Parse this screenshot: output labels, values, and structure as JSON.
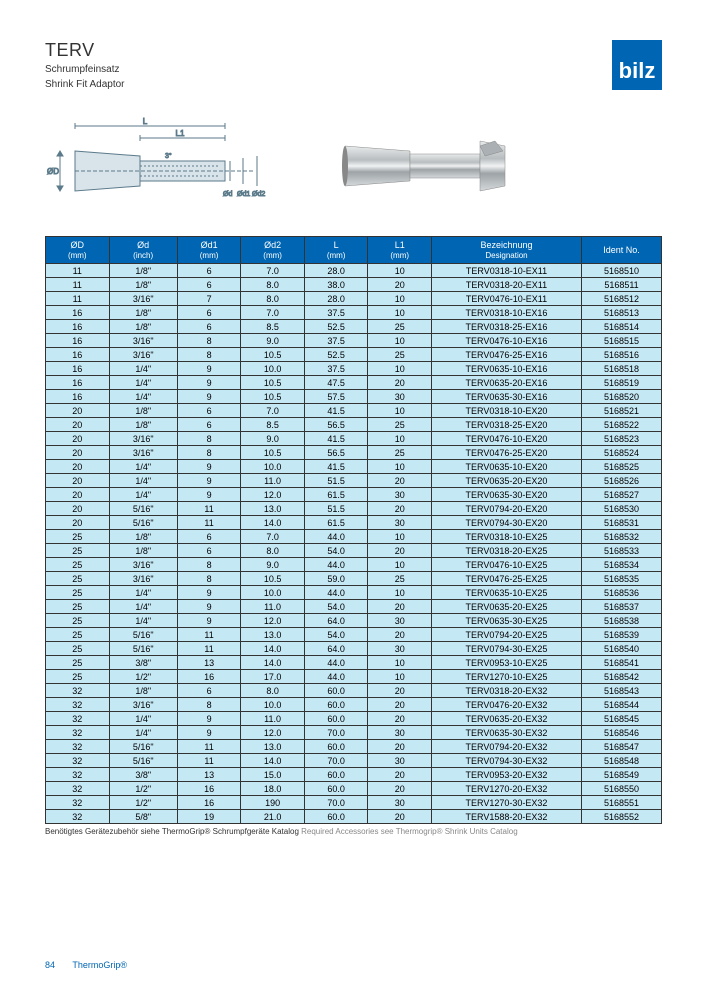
{
  "header": {
    "title": "TERV",
    "subtitle1": "Schrumpfeinsatz",
    "subtitle2": "Shrink Fit Adaptor",
    "logo_text": "bilz",
    "logo_bg": "#0066b3"
  },
  "diagram": {
    "labels": {
      "L": "L",
      "L1": "L1",
      "angle": "3°",
      "OD": "ØD",
      "od": "Ød",
      "od1": "Ød1",
      "od2": "Ød2"
    },
    "stroke": "#5b7a8a",
    "fill": "#d8e4ea"
  },
  "table": {
    "header_bg": "#0066b3",
    "header_fg": "#ffffff",
    "row_bg": "#c5e8f5",
    "border": "#333333",
    "columns": [
      {
        "h1": "ØD",
        "h2": "(mm)"
      },
      {
        "h1": "Ød",
        "h2": "(inch)"
      },
      {
        "h1": "Ød1",
        "h2": "(mm)"
      },
      {
        "h1": "Ød2",
        "h2": "(mm)"
      },
      {
        "h1": "L",
        "h2": "(mm)"
      },
      {
        "h1": "L1",
        "h2": "(mm)"
      },
      {
        "h1": "Bezeichnung",
        "h2": "Designation"
      },
      {
        "h1": "Ident No.",
        "h2": ""
      }
    ],
    "rows": [
      [
        "11",
        "1/8\"",
        "6",
        "7.0",
        "28.0",
        "10",
        "TERV0318-10-EX11",
        "5168510"
      ],
      [
        "11",
        "1/8\"",
        "6",
        "8.0",
        "38.0",
        "20",
        "TERV0318-20-EX11",
        "5168511"
      ],
      [
        "11",
        "3/16\"",
        "7",
        "8.0",
        "28.0",
        "10",
        "TERV0476-10-EX11",
        "5168512"
      ],
      [
        "16",
        "1/8\"",
        "6",
        "7.0",
        "37.5",
        "10",
        "TERV0318-10-EX16",
        "5168513"
      ],
      [
        "16",
        "1/8\"",
        "6",
        "8.5",
        "52.5",
        "25",
        "TERV0318-25-EX16",
        "5168514"
      ],
      [
        "16",
        "3/16\"",
        "8",
        "9.0",
        "37.5",
        "10",
        "TERV0476-10-EX16",
        "5168515"
      ],
      [
        "16",
        "3/16\"",
        "8",
        "10.5",
        "52.5",
        "25",
        "TERV0476-25-EX16",
        "5168516"
      ],
      [
        "16",
        "1/4\"",
        "9",
        "10.0",
        "37.5",
        "10",
        "TERV0635-10-EX16",
        "5168518"
      ],
      [
        "16",
        "1/4\"",
        "9",
        "10.5",
        "47.5",
        "20",
        "TERV0635-20-EX16",
        "5168519"
      ],
      [
        "16",
        "1/4\"",
        "9",
        "10.5",
        "57.5",
        "30",
        "TERV0635-30-EX16",
        "5168520"
      ],
      [
        "20",
        "1/8\"",
        "6",
        "7.0",
        "41.5",
        "10",
        "TERV0318-10-EX20",
        "5168521"
      ],
      [
        "20",
        "1/8\"",
        "6",
        "8.5",
        "56.5",
        "25",
        "TERV0318-25-EX20",
        "5168522"
      ],
      [
        "20",
        "3/16\"",
        "8",
        "9.0",
        "41.5",
        "10",
        "TERV0476-10-EX20",
        "5168523"
      ],
      [
        "20",
        "3/16\"",
        "8",
        "10.5",
        "56.5",
        "25",
        "TERV0476-25-EX20",
        "5168524"
      ],
      [
        "20",
        "1/4\"",
        "9",
        "10.0",
        "41.5",
        "10",
        "TERV0635-10-EX20",
        "5168525"
      ],
      [
        "20",
        "1/4\"",
        "9",
        "11.0",
        "51.5",
        "20",
        "TERV0635-20-EX20",
        "5168526"
      ],
      [
        "20",
        "1/4\"",
        "9",
        "12.0",
        "61.5",
        "30",
        "TERV0635-30-EX20",
        "5168527"
      ],
      [
        "20",
        "5/16\"",
        "11",
        "13.0",
        "51.5",
        "20",
        "TERV0794-20-EX20",
        "5168530"
      ],
      [
        "20",
        "5/16\"",
        "11",
        "14.0",
        "61.5",
        "30",
        "TERV0794-30-EX20",
        "5168531"
      ],
      [
        "25",
        "1/8\"",
        "6",
        "7.0",
        "44.0",
        "10",
        "TERV0318-10-EX25",
        "5168532"
      ],
      [
        "25",
        "1/8\"",
        "6",
        "8.0",
        "54.0",
        "20",
        "TERV0318-20-EX25",
        "5168533"
      ],
      [
        "25",
        "3/16\"",
        "8",
        "9.0",
        "44.0",
        "10",
        "TERV0476-10-EX25",
        "5168534"
      ],
      [
        "25",
        "3/16\"",
        "8",
        "10.5",
        "59.0",
        "25",
        "TERV0476-25-EX25",
        "5168535"
      ],
      [
        "25",
        "1/4\"",
        "9",
        "10.0",
        "44.0",
        "10",
        "TERV0635-10-EX25",
        "5168536"
      ],
      [
        "25",
        "1/4\"",
        "9",
        "11.0",
        "54.0",
        "20",
        "TERV0635-20-EX25",
        "5168537"
      ],
      [
        "25",
        "1/4\"",
        "9",
        "12.0",
        "64.0",
        "30",
        "TERV0635-30-EX25",
        "5168538"
      ],
      [
        "25",
        "5/16\"",
        "11",
        "13.0",
        "54.0",
        "20",
        "TERV0794-20-EX25",
        "5168539"
      ],
      [
        "25",
        "5/16\"",
        "11",
        "14.0",
        "64.0",
        "30",
        "TERV0794-30-EX25",
        "5168540"
      ],
      [
        "25",
        "3/8\"",
        "13",
        "14.0",
        "44.0",
        "10",
        "TERV0953-10-EX25",
        "5168541"
      ],
      [
        "25",
        "1/2\"",
        "16",
        "17.0",
        "44.0",
        "10",
        "TERV1270-10-EX25",
        "5168542"
      ],
      [
        "32",
        "1/8\"",
        "6",
        "8.0",
        "60.0",
        "20",
        "TERV0318-20-EX32",
        "5168543"
      ],
      [
        "32",
        "3/16\"",
        "8",
        "10.0",
        "60.0",
        "20",
        "TERV0476-20-EX32",
        "5168544"
      ],
      [
        "32",
        "1/4\"",
        "9",
        "11.0",
        "60.0",
        "20",
        "TERV0635-20-EX32",
        "5168545"
      ],
      [
        "32",
        "1/4\"",
        "9",
        "12.0",
        "70.0",
        "30",
        "TERV0635-30-EX32",
        "5168546"
      ],
      [
        "32",
        "5/16\"",
        "11",
        "13.0",
        "60.0",
        "20",
        "TERV0794-20-EX32",
        "5168547"
      ],
      [
        "32",
        "5/16\"",
        "11",
        "14.0",
        "70.0",
        "30",
        "TERV0794-30-EX32",
        "5168548"
      ],
      [
        "32",
        "3/8\"",
        "13",
        "15.0",
        "60.0",
        "20",
        "TERV0953-20-EX32",
        "5168549"
      ],
      [
        "32",
        "1/2\"",
        "16",
        "18.0",
        "60.0",
        "20",
        "TERV1270-20-EX32",
        "5168550"
      ],
      [
        "32",
        "1/2\"",
        "16",
        "190",
        "70.0",
        "30",
        "TERV1270-30-EX32",
        "5168551"
      ],
      [
        "32",
        "5/8\"",
        "19",
        "21.0",
        "60.0",
        "20",
        "TERV1588-20-EX32",
        "5168552"
      ]
    ]
  },
  "footnote": {
    "de": "Benötigtes Gerätezubehör siehe ThermoGrip® Schrumpfgeräte Katalog",
    "en": "Required Accessories see Thermogrip® Shrink Units Catalog"
  },
  "footer": {
    "page": "84",
    "brand": "ThermoGrip®"
  }
}
